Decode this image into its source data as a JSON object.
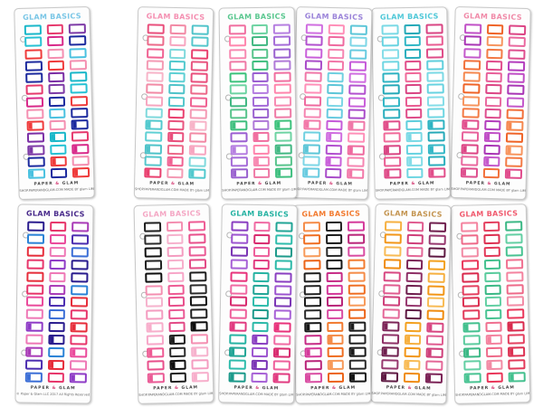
{
  "top_row": [
    {
      "title": "GLAM BASICS",
      "title_color": "#7ac6e6",
      "icon": "ribbon-icon",
      "palette": [
        "#19b7c9",
        "#e63a6d",
        "#7d3aa6",
        "#27c2d4",
        "#d82a8a",
        "#1c2a9e",
        "#ef3b3b",
        "#f48fb1",
        "#4ac1e0",
        "#1c2a9e",
        "#ef3b3b",
        "#f48fb1",
        "#1c2a9e",
        "#7a2ea5"
      ]
    },
    {
      "title": "GLAM BASICS",
      "title_color": "#f48fb1",
      "icon": "heart-icon",
      "palette": [
        "#5fd0d4",
        "#e94f7c",
        "#f28aa5",
        "#4fc3c9",
        "#ec6a8a",
        "#f7a6c0",
        "#55c7cc",
        "#f06292",
        "#7fd9dc",
        "#e9406f",
        "#f49ab4",
        "#52c9ce",
        "#e8557f",
        "#f7b4c8"
      ]
    },
    {
      "title": "GLAM BASICS",
      "title_color": "#5ac78f",
      "icon": "cup-icon",
      "palette": [
        "#3cc27c",
        "#9b5fd1",
        "#f06fa0",
        "#6dd3a2",
        "#b57ee0",
        "#ff86ad",
        "#42b883",
        "#a56cd8",
        "#f78ab2",
        "#58c48c",
        "#9a62cf",
        "#ef7aa6",
        "#3fbf7f",
        "#b07ad8"
      ]
    },
    {
      "title": "GLAM BASICS",
      "title_color": "#9b84d9",
      "icon": "gift-icon",
      "palette": [
        "#c65ad9",
        "#f078a8",
        "#6fd0e0",
        "#d06ee0",
        "#ff8fb8",
        "#5dc6d8",
        "#b251cf",
        "#ef6a9f",
        "#7dd6e6",
        "#c960da",
        "#f585b1",
        "#68cbe0",
        "#a94cc9",
        "#f278a8"
      ]
    },
    {
      "title": "GLAM BASICS",
      "title_color": "#4fc8d8",
      "icon": "shoe-icon",
      "palette": [
        "#e14e8a",
        "#5fcfdd",
        "#2eb3c2",
        "#f06a9a",
        "#7ad9e5",
        "#25a9b8",
        "#d94583",
        "#68d3e1",
        "#33b7c6",
        "#e95c92",
        "#85dde8",
        "#2aaebd",
        "#df4c88",
        "#6fd6e2"
      ]
    },
    {
      "title": "GLAM BASICS",
      "title_color": "#f08aa8",
      "icon": "tag-icon",
      "palette": [
        "#f2703a",
        "#e14d8d",
        "#b33dbd",
        "#f5884f",
        "#e8609a",
        "#c04fc6",
        "#ef6428",
        "#dc4585",
        "#a935b5",
        "#f7955f",
        "#e9699f",
        "#c459cb",
        "#f37a45",
        "#de4f8e"
      ]
    }
  ],
  "bottom_row": [
    {
      "title": "GLAM BASICS",
      "title_color": "#4a2c8c",
      "icon": "cherry-icon",
      "palette": [
        "#2a1c8e",
        "#e7356a",
        "#a93bb7",
        "#2a82d6",
        "#ea4a9b",
        "#4b2db0",
        "#e62d3a",
        "#ee78b6",
        "#3b6ed6",
        "#e7356a",
        "#8e3bc6",
        "#2a1c8e",
        "#e62d3a",
        "#ee78b6"
      ]
    },
    {
      "title": "GLAM BASICS",
      "title_color": "#f4a7c4",
      "icon": "watermelon-icon",
      "palette": [
        "#f7a6c8",
        "#1f1f1f",
        "#f48fb1",
        "#ee5b94",
        "#2b2b2b",
        "#f6b2cd",
        "#e84f8b",
        "#111111",
        "#f49cc0",
        "#ea5a95",
        "#202020",
        "#f7aecb",
        "#e24a86",
        "#0e0e0e"
      ]
    },
    {
      "title": "GLAM BASICS",
      "title_color": "#27b3a3",
      "icon": "burst-icon",
      "palette": [
        "#e8337b",
        "#27b3a3",
        "#8a3fc1",
        "#f06aa3",
        "#22a596",
        "#9c54cf",
        "#d82b6f",
        "#2fbcac",
        "#7b35b5",
        "#ee5f9b",
        "#1d9a8b",
        "#a761d6",
        "#e13a80",
        "#2cb9a8"
      ]
    },
    {
      "title": "GLAM BASICS",
      "title_color": "#f27b30",
      "icon": "pineapple-icon",
      "palette": [
        "#f27b30",
        "#1e1e1e",
        "#c62b86",
        "#f58c48",
        "#222222",
        "#d4399a",
        "#ef6e22",
        "#1a1a1a",
        "#b92579",
        "#f79a5a",
        "#2a2a2a",
        "#d94ca2",
        "#ec6418",
        "#161616"
      ]
    },
    {
      "title": "GLAM BASICS",
      "title_color": "#c49551",
      "icon": "bug-icon",
      "palette": [
        "#7c2457",
        "#f3a11f",
        "#d84882",
        "#8e3066",
        "#f6b040",
        "#e05c90",
        "#6f1f4e",
        "#f29618",
        "#cf3f7a",
        "#97396f",
        "#f8bb55",
        "#e46898",
        "#5f1a43",
        "#f08c10"
      ]
    },
    {
      "title": "GLAM BASICS",
      "title_color": "#f05a6e",
      "icon": "leaf-icon",
      "palette": [
        "#e9375a",
        "#43c08e",
        "#f07090",
        "#d92a4d",
        "#5acb9d",
        "#f4839f",
        "#e4405f",
        "#3bb885",
        "#ee6a89",
        "#dc3051",
        "#63cfa3",
        "#f28ba5",
        "#e23a5a",
        "#48c392"
      ]
    }
  ],
  "footer": {
    "website": "SHOP.PAPERANDGLAM.COM",
    "brand_left": "PAPER",
    "brand_amp": "&",
    "brand_right": "GLAM",
    "made_by": "MADE BY glam LIM",
    "copyright": "© Paper & Glam LLC 2017 All Rights Reserved"
  }
}
